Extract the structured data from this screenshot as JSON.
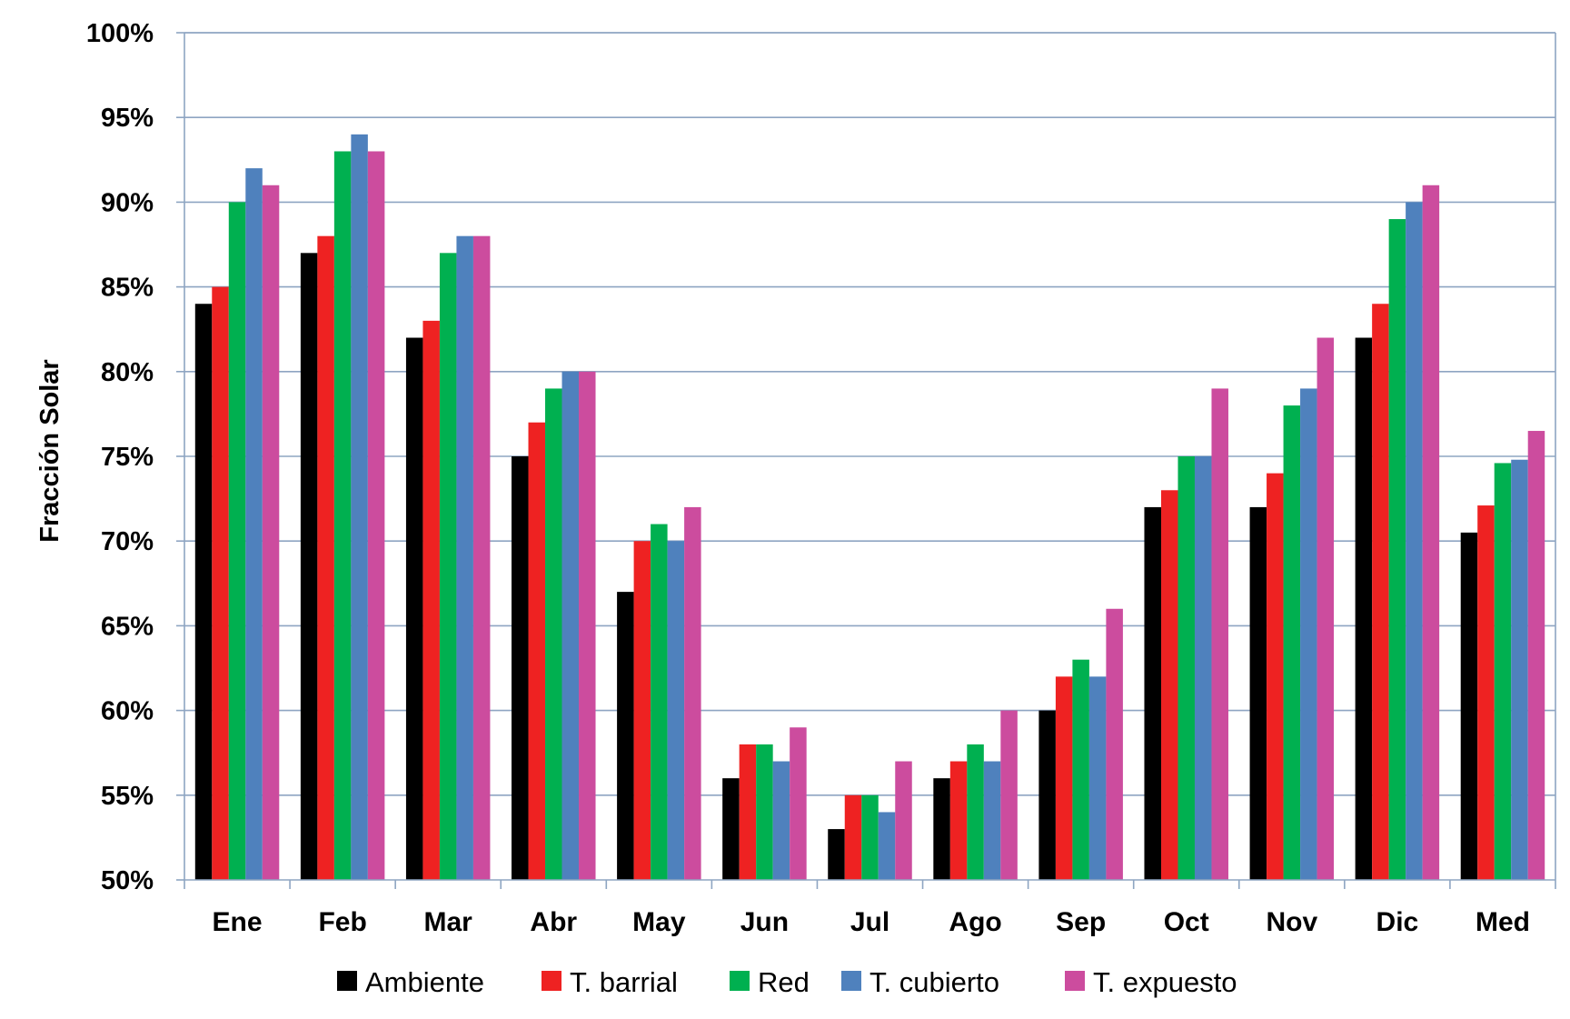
{
  "chart_data": {
    "type": "bar",
    "title": "",
    "xlabel": "",
    "ylabel": "Fracción Solar",
    "ylim": [
      50,
      100
    ],
    "yticks": [
      "50%",
      "55%",
      "60%",
      "65%",
      "70%",
      "75%",
      "80%",
      "85%",
      "90%",
      "95%",
      "100%"
    ],
    "ytick_values": [
      50,
      55,
      60,
      65,
      70,
      75,
      80,
      85,
      90,
      95,
      100
    ],
    "grid": true,
    "legend": "bottom",
    "categories": [
      "Ene",
      "Feb",
      "Mar",
      "Abr",
      "May",
      "Jun",
      "Jul",
      "Ago",
      "Sep",
      "Oct",
      "Nov",
      "Dic",
      "Med"
    ],
    "series": [
      {
        "name": "Ambiente",
        "color": "#000000",
        "values": [
          84,
          87,
          82,
          75,
          67,
          56,
          53,
          56,
          60,
          72,
          72,
          82,
          70.5
        ]
      },
      {
        "name": "T. barrial",
        "color": "#ee2222",
        "values": [
          85,
          88,
          83,
          77,
          70,
          58,
          55,
          57,
          62,
          73,
          74,
          84,
          72.1
        ]
      },
      {
        "name": "Red",
        "color": "#00b050",
        "values": [
          90,
          93,
          87,
          79,
          71,
          58,
          55,
          58,
          63,
          75,
          78,
          89,
          74.6
        ]
      },
      {
        "name": "T. cubierto",
        "color": "#4f81bd",
        "values": [
          92,
          94,
          88,
          80,
          70,
          57,
          54,
          57,
          62,
          75,
          79,
          90,
          74.8
        ]
      },
      {
        "name": "T. expuesto",
        "color": "#cc4c9e",
        "values": [
          91,
          93,
          88,
          80,
          72,
          59,
          57,
          60,
          66,
          79,
          82,
          91,
          76.5
        ]
      }
    ]
  }
}
